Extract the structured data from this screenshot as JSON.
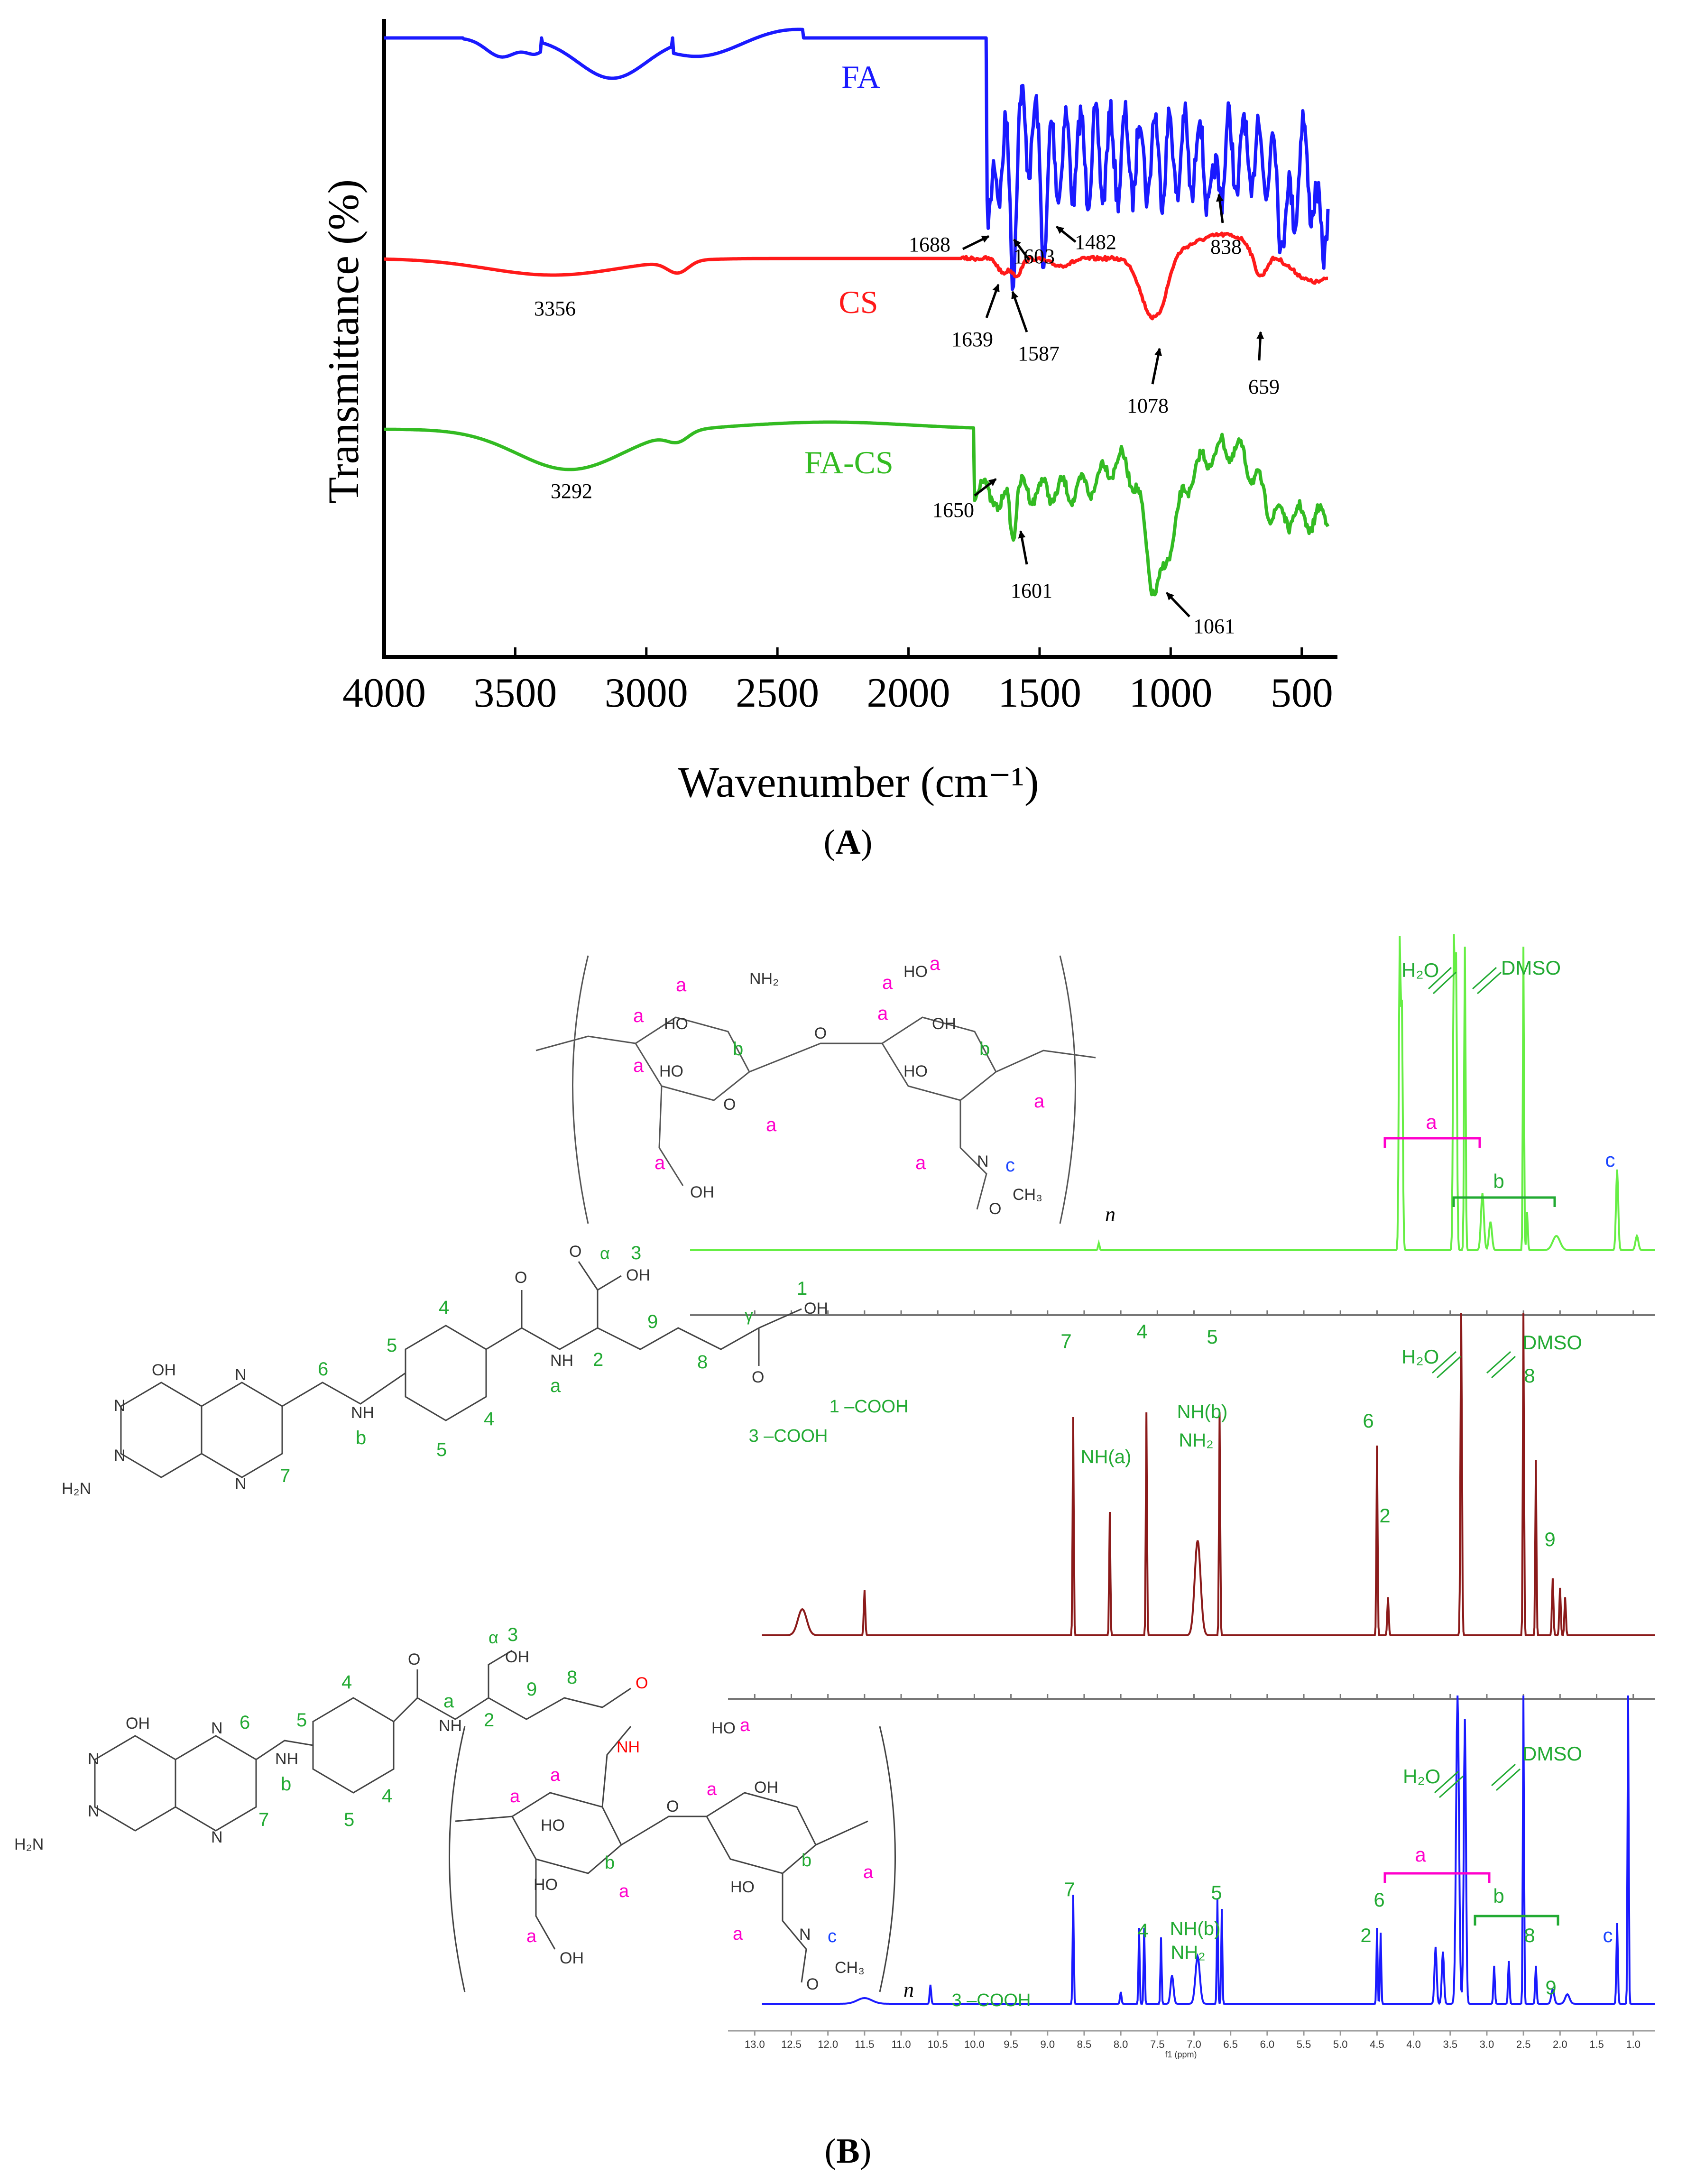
{
  "chart_data": [
    {
      "panel": "A",
      "type": "line",
      "title": "",
      "xlabel": "Wavenumber (cm⁻¹)",
      "ylabel": "Transmittance (%)",
      "xlim": [
        4000,
        400
      ],
      "x_ticks": [
        "4000",
        "3500",
        "3000",
        "2500",
        "2000",
        "1500",
        "1000",
        "500"
      ],
      "x_tick_values": [
        4000,
        3500,
        3000,
        2500,
        2000,
        1500,
        1000,
        500
      ],
      "series": [
        {
          "name": "FA",
          "color": "#1a1aff"
        },
        {
          "name": "CS",
          "color": "#ff1a1a"
        },
        {
          "name": "FA-CS",
          "color": "#33bb22"
        }
      ],
      "peaks": [
        {
          "series": "FA",
          "label": "1688",
          "x": 1688
        },
        {
          "series": "FA",
          "label": "1603",
          "x": 1603
        },
        {
          "series": "FA",
          "label": "1482",
          "x": 1482
        },
        {
          "series": "FA",
          "label": "838",
          "x": 838
        },
        {
          "series": "CS",
          "label": "3356",
          "x": 3356
        },
        {
          "series": "CS",
          "label": "1639",
          "x": 1639
        },
        {
          "series": "CS",
          "label": "1587",
          "x": 1587
        },
        {
          "series": "CS",
          "label": "1078",
          "x": 1078
        },
        {
          "series": "CS",
          "label": "659",
          "x": 659
        },
        {
          "series": "FA-CS",
          "label": "3292",
          "x": 3292
        },
        {
          "series": "FA-CS",
          "label": "1650",
          "x": 1650
        },
        {
          "series": "FA-CS",
          "label": "1601",
          "x": 1601
        },
        {
          "series": "FA-CS",
          "label": "1061",
          "x": 1061
        }
      ]
    },
    {
      "panel": "B",
      "type": "line",
      "xlabel": "f1 (ppm)",
      "xlim": [
        13.3,
        0.7
      ],
      "x_ticks": [
        "13.0",
        "12.5",
        "12.0",
        "11.5",
        "11.0",
        "10.5",
        "10.0",
        "9.5",
        "9.0",
        "8.5",
        "8.0",
        "7.5",
        "7.0",
        "6.5",
        "6.0",
        "5.5",
        "5.0",
        "4.5",
        "4.0",
        "3.5",
        "3.0",
        "2.5",
        "2.0",
        "1.5",
        "1.0"
      ],
      "series": [
        {
          "name": "CS",
          "color": "#66ee44",
          "peak_labels": [
            {
              "text": "H₂O",
              "x": 3.45
            },
            {
              "text": "DMSO",
              "x": 2.5
            },
            {
              "text": "a",
              "x": 3.7,
              "color": "#ff00cc"
            },
            {
              "text": "b",
              "x": 2.5
            },
            {
              "text": "c",
              "x": 1.2,
              "color": "#1a44ff"
            }
          ]
        },
        {
          "name": "FA",
          "color": "#8b1a1a",
          "peak_labels": [
            {
              "text": "3 –COOH",
              "x": 12.3
            },
            {
              "text": "1 –COOH",
              "x": 11.5
            },
            {
              "text": "7",
              "x": 8.65
            },
            {
              "text": "NH(a)",
              "x": 8.15
            },
            {
              "text": "4",
              "x": 7.65
            },
            {
              "text": "NH(b)",
              "x": 6.95
            },
            {
              "text": "NH₂",
              "x": 6.95
            },
            {
              "text": "5",
              "x": 6.64
            },
            {
              "text": "6",
              "x": 4.5
            },
            {
              "text": "2",
              "x": 4.35
            },
            {
              "text": "H₂O",
              "x": 3.35
            },
            {
              "text": "DMSO",
              "x": 2.5
            },
            {
              "text": "8",
              "x": 2.3
            },
            {
              "text": "9",
              "x": 2.0
            }
          ]
        },
        {
          "name": "FA-CS",
          "color": "#1a1aff",
          "peak_labels": [
            {
              "text": "3 –COOH",
              "x": 10.6
            },
            {
              "text": "7",
              "x": 8.65
            },
            {
              "text": "4",
              "x": 7.68
            },
            {
              "text": "NH(b)",
              "x": 6.95
            },
            {
              "text": "NH₂",
              "x": 6.95
            },
            {
              "text": "5",
              "x": 6.64
            },
            {
              "text": "6",
              "x": 4.45
            },
            {
              "text": "2",
              "x": 4.5
            },
            {
              "text": "H₂O",
              "x": 3.4
            },
            {
              "text": "DMSO",
              "x": 2.5
            },
            {
              "text": "a",
              "x": 3.6,
              "color": "#ff00cc"
            },
            {
              "text": "b",
              "x": 2.5
            },
            {
              "text": "8",
              "x": 2.3
            },
            {
              "text": "9",
              "x": 2.0
            },
            {
              "text": "c",
              "x": 1.2,
              "color": "#1a44ff"
            }
          ]
        }
      ]
    }
  ],
  "labels": {
    "panel_a": "A",
    "panel_b": "B",
    "poly_n": "n"
  },
  "structures": {
    "chitosan_labels": [
      "a",
      "a",
      "a",
      "a",
      "a",
      "a",
      "a",
      "a",
      "a",
      "a",
      "b",
      "b",
      "c"
    ],
    "chitosan_groups": [
      "NH₂",
      "HO",
      "HO",
      "OH",
      "O",
      "O",
      "HO",
      "OH",
      "HO",
      "N",
      "H",
      "CH₃",
      "O"
    ],
    "folate_numbers": [
      "1",
      "2",
      "3",
      "4",
      "4",
      "5",
      "5",
      "6",
      "7",
      "8",
      "9",
      "a",
      "b",
      "α",
      "γ"
    ],
    "folate_groups": [
      "OH",
      "OH",
      "OH",
      "NH",
      "NH",
      "N",
      "N",
      "N",
      "N",
      "H₂N",
      "O",
      "O",
      "O"
    ]
  },
  "colors": {
    "fa_blue": "#1a1aff",
    "cs_red": "#ff1a1a",
    "facs_green": "#33bb22",
    "nmr_cs_green": "#66ee44",
    "nmr_fa_maroon": "#8b1a1a",
    "nmr_facs_blue": "#1a1aff",
    "label_green": "#22aa33",
    "label_magenta": "#ff00cc",
    "label_blue": "#1a44ff",
    "amide_red": "#ff0000"
  }
}
